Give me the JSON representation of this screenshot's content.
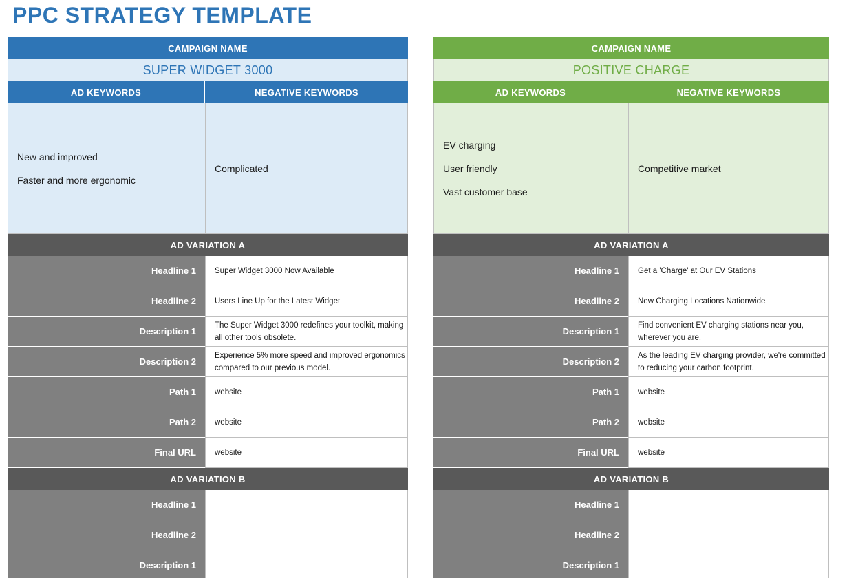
{
  "title": "PPC STRATEGY TEMPLATE",
  "labels": {
    "campaign_name": "CAMPAIGN NAME",
    "ad_keywords": "AD KEYWORDS",
    "negative_keywords": "NEGATIVE KEYWORDS",
    "variation_a": "AD VARIATION A",
    "variation_b": "AD VARIATION B"
  },
  "campaigns": [
    {
      "name": "SUPER WIDGET 3000",
      "accent": "#2e75b6",
      "ad_keywords": [
        "New and improved",
        "Faster and more ergonomic"
      ],
      "negative_keywords": [
        "Complicated"
      ],
      "variation_a": [
        {
          "label": "Headline 1",
          "value": "Super Widget 3000 Now Available"
        },
        {
          "label": "Headline 2",
          "value": "Users Line Up for the Latest Widget"
        },
        {
          "label": "Description 1",
          "value": "The Super Widget 3000 redefines your toolkit, making all other tools obsolete."
        },
        {
          "label": "Description 2",
          "value": "Experience 5% more speed and improved ergonomics compared to our previous model."
        },
        {
          "label": "Path 1",
          "value": "website"
        },
        {
          "label": "Path 2",
          "value": "website"
        },
        {
          "label": "Final URL",
          "value": "website"
        }
      ],
      "variation_b": [
        {
          "label": "Headline 1",
          "value": ""
        },
        {
          "label": "Headline 2",
          "value": ""
        },
        {
          "label": "Description 1",
          "value": ""
        }
      ]
    },
    {
      "name": "POSITIVE CHARGE",
      "accent": "#70ad47",
      "ad_keywords": [
        "EV charging",
        "User friendly",
        "Vast customer base"
      ],
      "negative_keywords": [
        "Competitive market"
      ],
      "variation_a": [
        {
          "label": "Headline 1",
          "value": "Get a 'Charge' at Our EV Stations"
        },
        {
          "label": "Headline 2",
          "value": "New Charging Locations Nationwide"
        },
        {
          "label": "Description 1",
          "value": "Find convenient EV charging stations near you, wherever you are."
        },
        {
          "label": "Description 2",
          "value": "As the leading EV charging provider, we're committed to reducing your carbon footprint."
        },
        {
          "label": "Path 1",
          "value": "website"
        },
        {
          "label": "Path 2",
          "value": "website"
        },
        {
          "label": "Final URL",
          "value": "website"
        }
      ],
      "variation_b": [
        {
          "label": "Headline 1",
          "value": ""
        },
        {
          "label": "Headline 2",
          "value": ""
        },
        {
          "label": "Description 1",
          "value": ""
        }
      ]
    }
  ]
}
